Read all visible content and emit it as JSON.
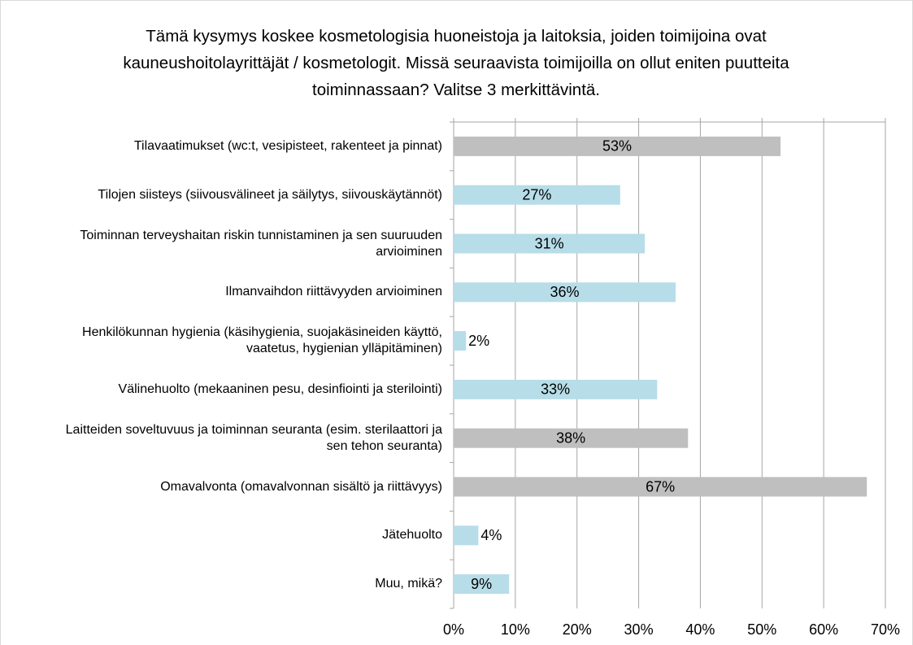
{
  "chart_data": {
    "type": "bar",
    "orientation": "horizontal",
    "title": "Tämä kysymys koskee kosmetologisia huoneistoja ja laitoksia, joiden toimijoina ovat kauneushoitolayrittäjät / kosmetologit. Missä seuraavista toimijoilla on ollut eniten puutteita toiminnassaan? Valitse 3 merkittävintä.",
    "categories": [
      "Tilavaatimukset (wc:t, vesipisteet, rakenteet ja pinnat)",
      "Tilojen siisteys (siivousvälineet ja säilytys, siivouskäytännöt)",
      "Toiminnan terveyshaitan riskin tunnistaminen ja sen suuruuden arvioiminen",
      "Ilmanvaihdon riittävyyden arvioiminen",
      "Henkilökunnan hygienia (käsihygienia, suojakäsineiden käyttö, vaatetus, hygienian ylläpitäminen)",
      "Välinehuolto (mekaaninen pesu, desinfiointi ja sterilointi)",
      "Laitteiden soveltuvuus ja toiminnan seuranta (esim. sterilaattori ja sen tehon seuranta)",
      "Omavalvonta (omavalvonnan sisältö ja riittävyys)",
      "Jätehuolto",
      "Muu, mikä?"
    ],
    "values": [
      53,
      27,
      31,
      36,
      2,
      33,
      38,
      67,
      4,
      9
    ],
    "value_labels": [
      "53%",
      "27%",
      "31%",
      "36%",
      "2%",
      "33%",
      "38%",
      "67%",
      "4%",
      "9%"
    ],
    "colors": [
      "#bfbfbf",
      "#b7dde8",
      "#b7dde8",
      "#b7dde8",
      "#b7dde8",
      "#b7dde8",
      "#bfbfbf",
      "#bfbfbf",
      "#b7dde8",
      "#b7dde8"
    ],
    "xlim": [
      0,
      70
    ],
    "xticks": [
      {
        "value": 0,
        "label": "0%"
      },
      {
        "value": 10,
        "label": "10%"
      },
      {
        "value": 20,
        "label": "20%"
      },
      {
        "value": 30,
        "label": "30%"
      },
      {
        "value": 40,
        "label": "40%"
      },
      {
        "value": 50,
        "label": "50%"
      },
      {
        "value": 60,
        "label": "60%"
      },
      {
        "value": 70,
        "label": "70%"
      }
    ],
    "grid": true
  }
}
